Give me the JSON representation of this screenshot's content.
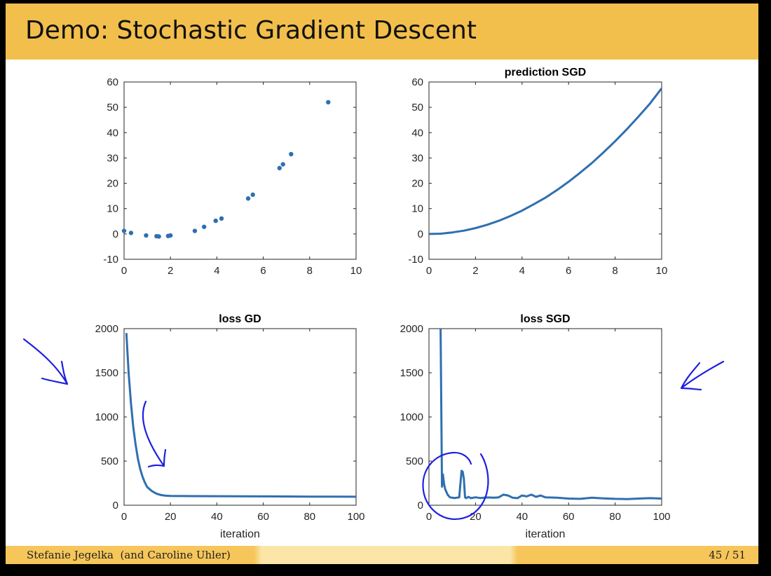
{
  "slide": {
    "title": "Demo: Stochastic Gradient Descent",
    "footer_author": "Stefanie Jegelka  (and Caroline Uhler)",
    "footer_page": "45 / 51"
  },
  "colors": {
    "header": "#f2bf4c",
    "series": "#2f6fb0",
    "annotation": "#1f1fe0"
  },
  "chart_data": [
    {
      "type": "scatter",
      "title": "",
      "xlabel": "",
      "ylabel": "",
      "xlim": [
        0,
        10
      ],
      "ylim": [
        -10,
        60
      ],
      "xticks": [
        0,
        2,
        4,
        6,
        8,
        10
      ],
      "yticks": [
        -10,
        0,
        10,
        20,
        30,
        40,
        50,
        60
      ],
      "points": [
        [
          0.0,
          1.2
        ],
        [
          0.3,
          0.4
        ],
        [
          0.95,
          -0.6
        ],
        [
          1.4,
          -0.9
        ],
        [
          1.5,
          -1.0
        ],
        [
          1.9,
          -0.8
        ],
        [
          2.0,
          -0.6
        ],
        [
          3.05,
          1.2
        ],
        [
          3.45,
          2.8
        ],
        [
          3.95,
          5.2
        ],
        [
          4.2,
          6.1
        ],
        [
          5.35,
          14.0
        ],
        [
          5.55,
          15.5
        ],
        [
          6.7,
          26.0
        ],
        [
          6.85,
          27.5
        ],
        [
          7.2,
          31.5
        ],
        [
          8.8,
          52.0
        ]
      ]
    },
    {
      "type": "line",
      "title": "prediction SGD",
      "xlabel": "",
      "ylabel": "",
      "xlim": [
        0,
        10
      ],
      "ylim": [
        -10,
        60
      ],
      "xticks": [
        0,
        2,
        4,
        6,
        8,
        10
      ],
      "yticks": [
        -10,
        0,
        10,
        20,
        30,
        40,
        50,
        60
      ],
      "x": [
        0,
        0.5,
        1,
        1.5,
        2,
        2.5,
        3,
        3.5,
        4,
        4.5,
        5,
        5.5,
        6,
        6.5,
        7,
        7.5,
        8,
        8.5,
        9,
        9.5,
        10
      ],
      "y": [
        0,
        0.1,
        0.6,
        1.3,
        2.3,
        3.6,
        5.2,
        7.1,
        9.2,
        11.7,
        14.3,
        17.3,
        20.6,
        24.2,
        28.0,
        32.2,
        36.6,
        41.3,
        46.3,
        51.5,
        57.5
      ]
    },
    {
      "type": "line",
      "title": "loss GD",
      "xlabel": "iteration",
      "ylabel": "",
      "xlim": [
        0,
        100
      ],
      "ylim": [
        0,
        2000
      ],
      "xticks": [
        0,
        20,
        40,
        60,
        80,
        100
      ],
      "yticks": [
        0,
        500,
        1000,
        1500,
        2000
      ],
      "x": [
        1,
        2,
        3,
        4,
        5,
        6,
        7,
        8,
        9,
        10,
        12,
        14,
        16,
        18,
        20,
        25,
        30,
        40,
        50,
        60,
        70,
        80,
        90,
        100
      ],
      "y": [
        1950,
        1490,
        1150,
        880,
        680,
        520,
        405,
        320,
        255,
        205,
        160,
        130,
        115,
        108,
        105,
        104,
        103,
        102,
        101,
        100,
        99,
        98,
        97,
        96
      ]
    },
    {
      "type": "line",
      "title": "loss SGD",
      "xlabel": "iteration",
      "ylabel": "",
      "xlim": [
        0,
        100
      ],
      "ylim": [
        0,
        2000
      ],
      "xticks": [
        0,
        20,
        40,
        60,
        80,
        100
      ],
      "yticks": [
        0,
        500,
        1000,
        1500,
        2000
      ],
      "x": [
        5,
        5.6,
        6,
        6.5,
        7,
        8,
        9,
        10,
        11,
        12,
        13,
        14,
        14.5,
        15,
        15.5,
        16,
        17,
        18,
        20,
        22,
        25,
        28,
        30,
        32,
        34,
        36,
        38,
        40,
        42,
        44,
        46,
        48,
        50,
        55,
        60,
        65,
        70,
        75,
        80,
        85,
        90,
        95,
        100
      ],
      "y": [
        2000,
        210,
        350,
        240,
        180,
        120,
        90,
        85,
        82,
        85,
        90,
        390,
        380,
        300,
        90,
        80,
        95,
        80,
        90,
        82,
        88,
        85,
        90,
        120,
        110,
        85,
        80,
        110,
        100,
        120,
        95,
        110,
        90,
        85,
        75,
        72,
        85,
        78,
        72,
        70,
        75,
        80,
        75
      ]
    }
  ]
}
